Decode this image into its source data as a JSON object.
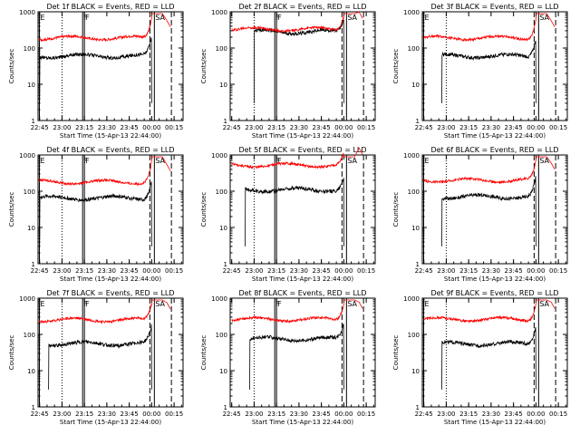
{
  "colors": {
    "background": "#ffffff",
    "events": "#000000",
    "lld": "#ff0000"
  },
  "chart_data": [
    {
      "type": "line",
      "title": "Det 1f BLACK = Events, RED = LLD",
      "xlabel": "Start Time (15-Apr-13 22:44:00)",
      "ylabel": "Counts/sec",
      "ylog": true,
      "xticks": [
        "22:45",
        "23:00",
        "23:15",
        "23:30",
        "23:45",
        "00:00",
        "00:15"
      ],
      "yticks": [
        "1",
        "10",
        "100",
        "1000"
      ],
      "series": [
        {
          "name": "Events",
          "color": "#000000",
          "start": 22.75,
          "level": 60,
          "rise": 0.55
        },
        {
          "name": "LLD",
          "color": "#ff0000",
          "start": 22.75,
          "level": 190,
          "rise": 0.55
        }
      ],
      "markers": [
        {
          "label": "E",
          "t": 22.748,
          "style": "solid"
        },
        {
          "label": "F",
          "t": 23.23,
          "style": "solid"
        },
        {
          "label": "F",
          "t": 23.25,
          "style": "solid"
        },
        {
          "label": "SA",
          "t": 24.03,
          "style": "solid"
        },
        {
          "label": "",
          "t": 23.0,
          "style": "dotted"
        },
        {
          "label": "",
          "t": 23.98,
          "style": "dashed"
        },
        {
          "label": "",
          "t": 24.22,
          "style": "dashed"
        }
      ]
    },
    {
      "type": "line",
      "title": "Det 2f BLACK = Events, RED = LLD",
      "xlabel": "Start Time (15-Apr-13 22:44:00)",
      "ylabel": "Counts/sec",
      "ylog": true,
      "xticks": [
        "22:45",
        "23:00",
        "23:15",
        "23:30",
        "23:45",
        "00:00",
        "00:15"
      ],
      "yticks": [
        "1",
        "10",
        "100",
        "1000"
      ],
      "series": [
        {
          "name": "Events",
          "color": "#000000",
          "start": 23.0,
          "level": 280,
          "rise": 0.35
        },
        {
          "name": "LLD",
          "color": "#ff0000",
          "start": 22.75,
          "level": 330,
          "rise": 0.4
        }
      ],
      "markers": [
        {
          "label": "F",
          "t": 23.23,
          "style": "solid"
        },
        {
          "label": "F",
          "t": 23.25,
          "style": "solid"
        },
        {
          "label": "SA",
          "t": 24.03,
          "style": "solid"
        },
        {
          "label": "",
          "t": 23.0,
          "style": "dotted"
        },
        {
          "label": "",
          "t": 23.98,
          "style": "dashed"
        },
        {
          "label": "",
          "t": 24.22,
          "style": "dashed"
        }
      ]
    },
    {
      "type": "line",
      "title": "Det 3f BLACK = Events, RED = LLD",
      "xlabel": "Start Time (15-Apr-13 22:44:00)",
      "ylabel": "Counts/sec",
      "ylog": true,
      "xticks": [
        "22:45",
        "23:00",
        "23:15",
        "23:30",
        "23:45",
        "00:00",
        "00:15"
      ],
      "yticks": [
        "1",
        "10",
        "100",
        "1000"
      ],
      "series": [
        {
          "name": "Events",
          "color": "#000000",
          "start": 22.95,
          "level": 60,
          "rise": 0.55
        },
        {
          "name": "LLD",
          "color": "#ff0000",
          "start": 22.75,
          "level": 190,
          "rise": 0.55
        }
      ],
      "markers": [
        {
          "label": "E",
          "t": 22.748,
          "style": "solid"
        },
        {
          "label": "SA",
          "t": 24.03,
          "style": "solid"
        },
        {
          "label": "",
          "t": 23.0,
          "style": "dotted"
        },
        {
          "label": "",
          "t": 23.98,
          "style": "dashed"
        },
        {
          "label": "",
          "t": 24.22,
          "style": "dashed"
        }
      ]
    },
    {
      "type": "line",
      "title": "Det 4f BLACK = Events, RED = LLD",
      "xlabel": "Start Time (15-Apr-13 22:44:00)",
      "ylabel": "Counts/sec",
      "ylog": true,
      "xticks": [
        "22:45",
        "23:00",
        "23:15",
        "23:30",
        "23:45",
        "00:00",
        "00:15"
      ],
      "yticks": [
        "1",
        "10",
        "100",
        "1000"
      ],
      "series": [
        {
          "name": "Events",
          "color": "#000000",
          "start": 22.75,
          "level": 65,
          "rise": 0.55
        },
        {
          "name": "LLD",
          "color": "#ff0000",
          "start": 22.75,
          "level": 180,
          "rise": 0.55
        }
      ],
      "markers": [
        {
          "label": "E",
          "t": 22.748,
          "style": "solid"
        },
        {
          "label": "F",
          "t": 23.23,
          "style": "solid"
        },
        {
          "label": "F",
          "t": 23.25,
          "style": "solid"
        },
        {
          "label": "SA",
          "t": 24.03,
          "style": "solid"
        },
        {
          "label": "",
          "t": 23.0,
          "style": "dotted"
        },
        {
          "label": "",
          "t": 23.98,
          "style": "dashed"
        },
        {
          "label": "",
          "t": 24.22,
          "style": "dashed"
        }
      ]
    },
    {
      "type": "line",
      "title": "Det 5f BLACK = Events, RED = LLD",
      "xlabel": "Start Time (15-Apr-13 22:44:00)",
      "ylabel": "Counts/sec",
      "ylog": true,
      "xticks": [
        "22:45",
        "23:00",
        "23:15",
        "23:30",
        "23:45",
        "00:00",
        "00:15"
      ],
      "yticks": [
        "1",
        "10",
        "100",
        "1000"
      ],
      "series": [
        {
          "name": "Events",
          "color": "#000000",
          "start": 22.9,
          "level": 110,
          "rise": 0.35
        },
        {
          "name": "LLD",
          "color": "#ff0000",
          "start": 22.75,
          "level": 520,
          "rise": 0.3
        }
      ],
      "markers": [
        {
          "label": "F",
          "t": 23.23,
          "style": "solid"
        },
        {
          "label": "F",
          "t": 23.25,
          "style": "solid"
        },
        {
          "label": "SA",
          "t": 24.03,
          "style": "solid"
        },
        {
          "label": "",
          "t": 23.0,
          "style": "dotted"
        },
        {
          "label": "",
          "t": 23.98,
          "style": "dashed"
        },
        {
          "label": "",
          "t": 24.22,
          "style": "dashed"
        }
      ]
    },
    {
      "type": "line",
      "title": "Det 6f BLACK = Events, RED = LLD",
      "xlabel": "Start Time (15-Apr-13 22:44:00)",
      "ylabel": "Counts/sec",
      "ylog": true,
      "xticks": [
        "22:45",
        "23:00",
        "23:15",
        "23:30",
        "23:45",
        "00:00",
        "00:15"
      ],
      "yticks": [
        "1",
        "10",
        "100",
        "1000"
      ],
      "series": [
        {
          "name": "Events",
          "color": "#000000",
          "start": 22.95,
          "level": 70,
          "rise": 0.55
        },
        {
          "name": "LLD",
          "color": "#ff0000",
          "start": 22.75,
          "level": 200,
          "rise": 0.5
        }
      ],
      "markers": [
        {
          "label": "E",
          "t": 22.748,
          "style": "solid"
        },
        {
          "label": "SA",
          "t": 24.03,
          "style": "solid"
        },
        {
          "label": "",
          "t": 23.0,
          "style": "dotted"
        },
        {
          "label": "",
          "t": 23.98,
          "style": "dashed"
        },
        {
          "label": "",
          "t": 24.22,
          "style": "dashed"
        }
      ]
    },
    {
      "type": "line",
      "title": "Det 7f BLACK = Events, RED = LLD",
      "xlabel": "Start Time (15-Apr-13 22:44:00)",
      "ylabel": "Counts/sec",
      "ylog": true,
      "xticks": [
        "22:45",
        "23:00",
        "23:15",
        "23:30",
        "23:45",
        "00:00",
        "00:15"
      ],
      "yticks": [
        "1",
        "10",
        "100",
        "1000"
      ],
      "series": [
        {
          "name": "Events",
          "color": "#000000",
          "start": 22.85,
          "level": 55,
          "rise": 0.5
        },
        {
          "name": "LLD",
          "color": "#ff0000",
          "start": 22.75,
          "level": 250,
          "rise": 0.45
        }
      ],
      "markers": [
        {
          "label": "E",
          "t": 22.748,
          "style": "solid"
        },
        {
          "label": "F",
          "t": 23.23,
          "style": "solid"
        },
        {
          "label": "F",
          "t": 23.25,
          "style": "solid"
        },
        {
          "label": "SA",
          "t": 24.03,
          "style": "solid"
        },
        {
          "label": "",
          "t": 23.0,
          "style": "dotted"
        },
        {
          "label": "",
          "t": 23.98,
          "style": "dashed"
        },
        {
          "label": "",
          "t": 24.22,
          "style": "dashed"
        }
      ]
    },
    {
      "type": "line",
      "title": "Det 8f BLACK = Events, RED = LLD",
      "xlabel": "Start Time (15-Apr-13 22:44:00)",
      "ylabel": "Counts/sec",
      "ylog": true,
      "xticks": [
        "22:45",
        "23:00",
        "23:15",
        "23:30",
        "23:45",
        "00:00",
        "00:15"
      ],
      "yticks": [
        "1",
        "10",
        "100",
        "1000"
      ],
      "series": [
        {
          "name": "Events",
          "color": "#000000",
          "start": 22.95,
          "level": 75,
          "rise": 0.45
        },
        {
          "name": "LLD",
          "color": "#ff0000",
          "start": 22.75,
          "level": 260,
          "rise": 0.45
        }
      ],
      "markers": [
        {
          "label": "F",
          "t": 23.23,
          "style": "solid"
        },
        {
          "label": "F",
          "t": 23.25,
          "style": "solid"
        },
        {
          "label": "SA",
          "t": 24.03,
          "style": "solid"
        },
        {
          "label": "",
          "t": 23.0,
          "style": "dotted"
        },
        {
          "label": "",
          "t": 23.98,
          "style": "dashed"
        },
        {
          "label": "",
          "t": 24.22,
          "style": "dashed"
        }
      ]
    },
    {
      "type": "line",
      "title": "Det 9f BLACK = Events, RED = LLD",
      "xlabel": "Start Time (15-Apr-13 22:44:00)",
      "ylabel": "Counts/sec",
      "ylog": true,
      "xticks": [
        "22:45",
        "23:00",
        "23:15",
        "23:30",
        "23:45",
        "00:00",
        "00:15"
      ],
      "yticks": [
        "1",
        "10",
        "100",
        "1000"
      ],
      "series": [
        {
          "name": "Events",
          "color": "#000000",
          "start": 22.95,
          "level": 55,
          "rise": 0.55
        },
        {
          "name": "LLD",
          "color": "#ff0000",
          "start": 22.75,
          "level": 260,
          "rise": 0.45
        }
      ],
      "markers": [
        {
          "label": "E",
          "t": 22.748,
          "style": "solid"
        },
        {
          "label": "SA",
          "t": 24.03,
          "style": "solid"
        },
        {
          "label": "",
          "t": 23.0,
          "style": "dotted"
        },
        {
          "label": "",
          "t": 23.98,
          "style": "dashed"
        },
        {
          "label": "",
          "t": 24.22,
          "style": "dashed"
        }
      ]
    }
  ]
}
